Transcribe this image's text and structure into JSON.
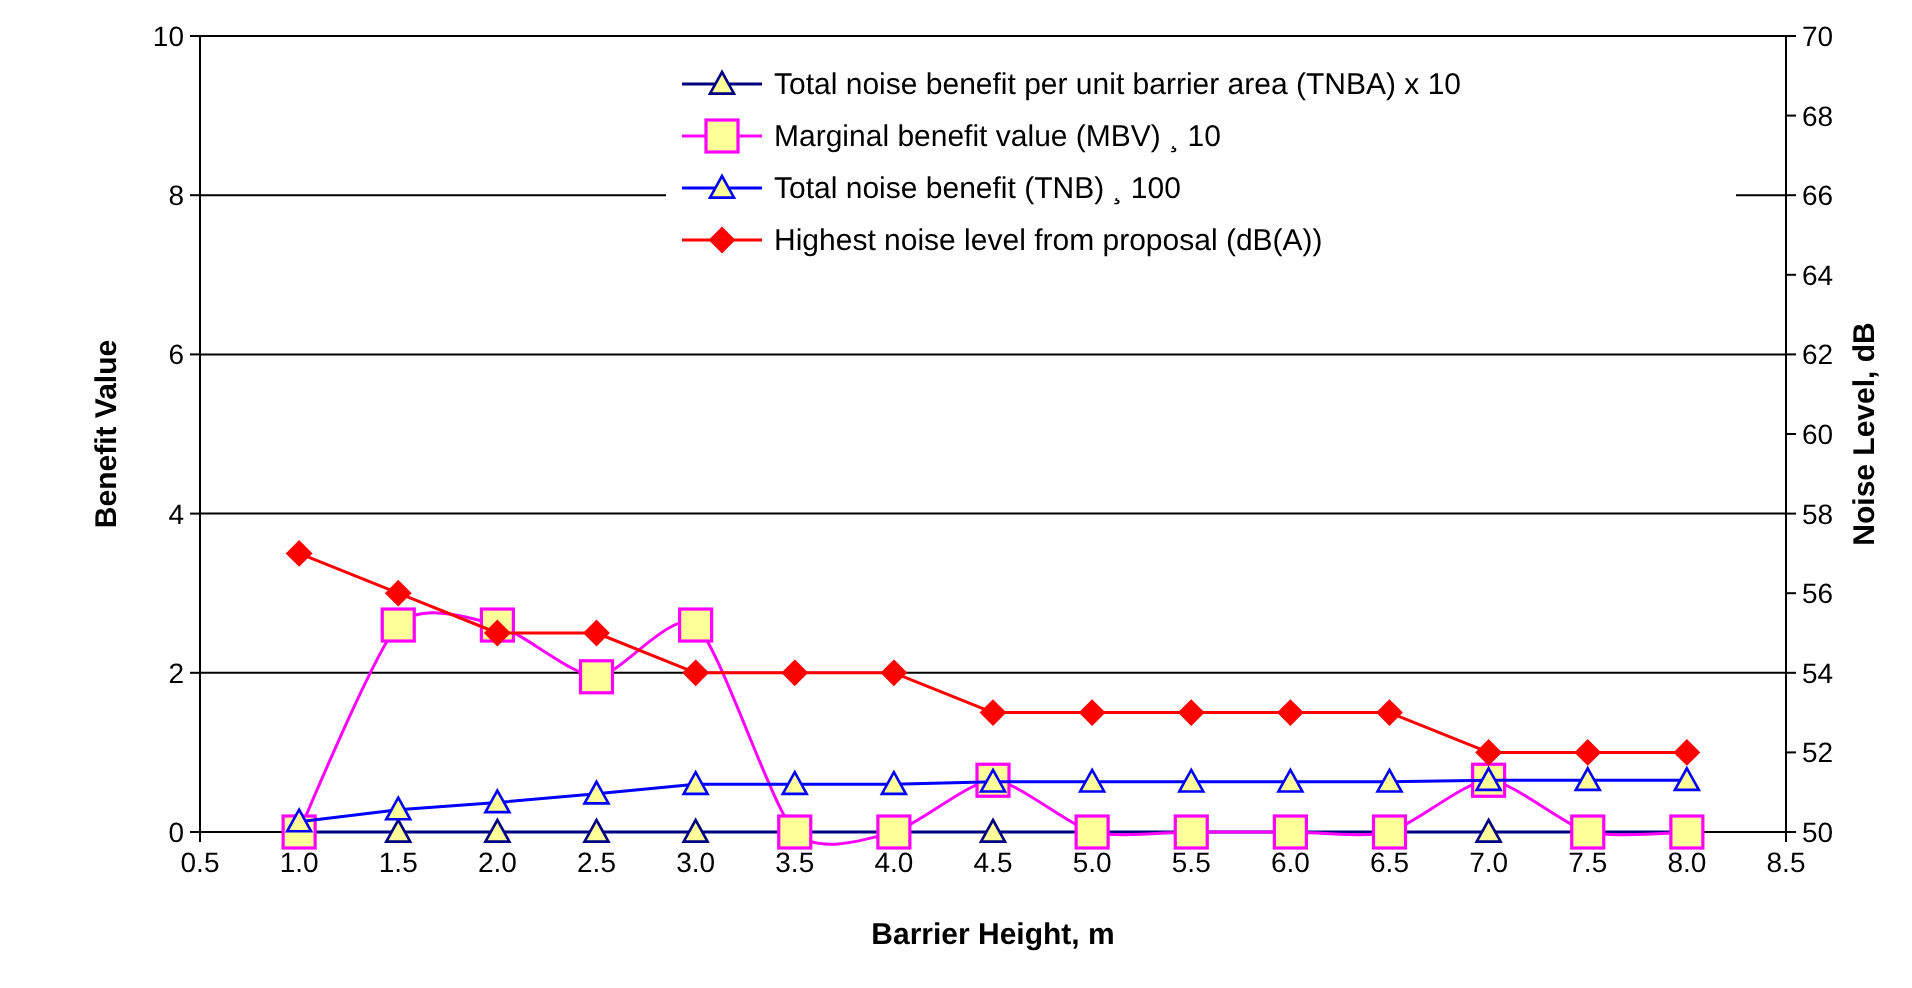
{
  "chart_data": {
    "type": "line",
    "xlabel": "Barrier Height, m",
    "ylabel": "Benefit Value",
    "y2label": "Noise Level, dB",
    "x": [
      1.0,
      1.5,
      2.0,
      2.5,
      3.0,
      3.5,
      4.0,
      4.5,
      5.0,
      5.5,
      6.0,
      6.5,
      7.0,
      7.5,
      8.0
    ],
    "xlim": [
      0.5,
      8.5
    ],
    "xticks": [
      {
        "value": 0.5,
        "label": "0.5"
      },
      {
        "value": 1,
        "label": "1.0"
      },
      {
        "value": 1.5,
        "label": "1.5"
      },
      {
        "value": 2,
        "label": "2.0"
      },
      {
        "value": 2.5,
        "label": "2.5"
      },
      {
        "value": 3,
        "label": "3.0"
      },
      {
        "value": 3.5,
        "label": "3.5"
      },
      {
        "value": 4,
        "label": "4.0"
      },
      {
        "value": 4.5,
        "label": "4.5"
      },
      {
        "value": 5,
        "label": "5.0"
      },
      {
        "value": 5.5,
        "label": "5.5"
      },
      {
        "value": 6,
        "label": "6.0"
      },
      {
        "value": 6.5,
        "label": "6.5"
      },
      {
        "value": 7,
        "label": "7.0"
      },
      {
        "value": 7.5,
        "label": "7.5"
      },
      {
        "value": 8,
        "label": "8.0"
      },
      {
        "value": 8.5,
        "label": "8.5"
      }
    ],
    "ylim": [
      0,
      10
    ],
    "yticks": [
      0,
      2,
      4,
      6,
      8,
      10
    ],
    "y2lim": [
      50,
      70
    ],
    "y2ticks": [
      50,
      52,
      54,
      56,
      58,
      60,
      62,
      64,
      66,
      68,
      70
    ],
    "grid": "y",
    "legend": "top right",
    "series": [
      {
        "name": "Total noise benefit per unit barrier area (TNBA) x 10",
        "color": "#000080",
        "marker": "triangle",
        "values": [
          0,
          0,
          0,
          0,
          0,
          0,
          0,
          0,
          0,
          0,
          0,
          0,
          0,
          0,
          0
        ]
      },
      {
        "name": "Marginal benefit value (MBV) ¸ 10",
        "color": "#ff00ff",
        "marker": "square",
        "values": [
          0,
          2.6,
          2.6,
          1.95,
          2.6,
          0,
          0,
          0.65,
          0,
          0,
          0,
          0,
          0.65,
          0,
          0
        ]
      },
      {
        "name": "Total noise benefit (TNB) ¸ 100",
        "color": "#0000ff",
        "marker": "triangle",
        "values": [
          0.13,
          0.28,
          0.37,
          0.48,
          0.6,
          0.6,
          0.6,
          0.63,
          0.63,
          0.63,
          0.63,
          0.63,
          0.65,
          0.65,
          0.65
        ]
      },
      {
        "name": "Highest noise level from proposal (dB(A))",
        "color": "#ff0000",
        "marker": "diamond",
        "axis": "y2",
        "values": [
          57,
          56,
          55,
          55,
          54,
          54,
          54,
          53,
          53,
          53,
          53,
          53,
          52,
          52,
          52
        ]
      }
    ]
  }
}
